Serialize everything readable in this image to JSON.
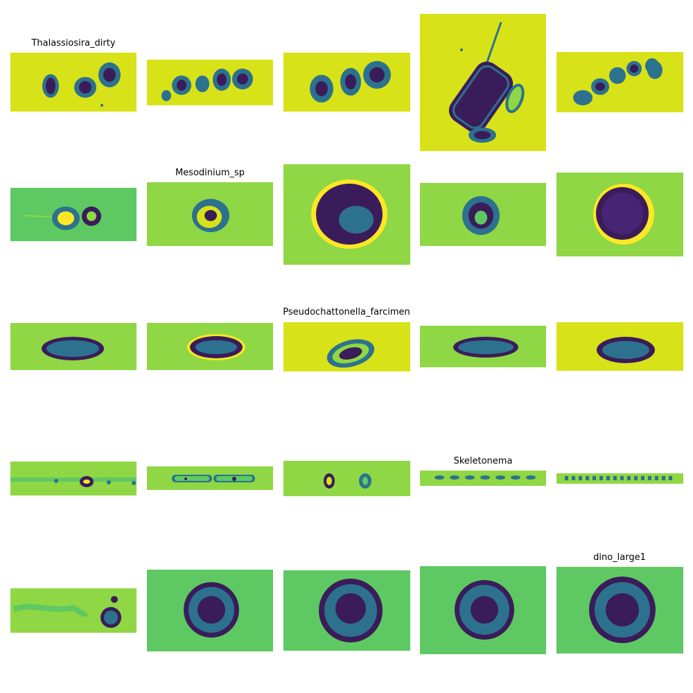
{
  "palette": {
    "background_yellow": "#d8e219",
    "background_green": "#5ec962",
    "cell_dark": "#3b1c5a",
    "cell_mid": "#2c728e",
    "halo": "#fde725"
  },
  "groups": [
    {
      "label": "Thalassiosira_dirty",
      "row": 0
    },
    {
      "label": "Mesodinium_sp",
      "row": 1
    },
    {
      "label": "Pseudochattonella_farcimen",
      "row": 2
    },
    {
      "label": "Skeletonema",
      "row": 3
    },
    {
      "label": "dino_large1",
      "row": 4
    }
  ],
  "tiles": [
    {
      "row": 0,
      "col": 0,
      "subject": "chain-of-dirty-cells"
    },
    {
      "row": 0,
      "col": 1,
      "subject": "chain-of-dirty-cells"
    },
    {
      "row": 0,
      "col": 2,
      "subject": "chain-of-dirty-cells"
    },
    {
      "row": 0,
      "col": 3,
      "subject": "large-cell-with-spine"
    },
    {
      "row": 0,
      "col": 4,
      "subject": "curved-chain"
    },
    {
      "row": 1,
      "col": 0,
      "subject": "ciliate"
    },
    {
      "row": 1,
      "col": 1,
      "subject": "ciliate"
    },
    {
      "row": 1,
      "col": 2,
      "subject": "large-dark-cell"
    },
    {
      "row": 1,
      "col": 3,
      "subject": "ciliate"
    },
    {
      "row": 1,
      "col": 4,
      "subject": "round-cell"
    },
    {
      "row": 2,
      "col": 0,
      "subject": "oval-cell"
    },
    {
      "row": 2,
      "col": 1,
      "subject": "oval-cell"
    },
    {
      "row": 2,
      "col": 2,
      "subject": "oval-cell"
    },
    {
      "row": 2,
      "col": 3,
      "subject": "oval-cell"
    },
    {
      "row": 2,
      "col": 4,
      "subject": "oval-cell"
    },
    {
      "row": 3,
      "col": 0,
      "subject": "thin-chain"
    },
    {
      "row": 3,
      "col": 1,
      "subject": "thin-chain"
    },
    {
      "row": 3,
      "col": 2,
      "subject": "thin-chain"
    },
    {
      "row": 3,
      "col": 3,
      "subject": "thin-chain"
    },
    {
      "row": 3,
      "col": 4,
      "subject": "thin-chain"
    },
    {
      "row": 4,
      "col": 0,
      "subject": "round-cell-with-debris"
    },
    {
      "row": 4,
      "col": 1,
      "subject": "round-granular-cell"
    },
    {
      "row": 4,
      "col": 2,
      "subject": "round-granular-cell"
    },
    {
      "row": 4,
      "col": 3,
      "subject": "round-granular-cell"
    },
    {
      "row": 4,
      "col": 4,
      "subject": "round-granular-cell"
    }
  ]
}
